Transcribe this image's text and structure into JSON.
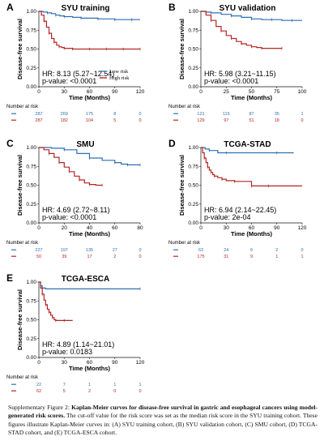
{
  "colors": {
    "low": "#2e6fb5",
    "high": "#b22626",
    "axis": "#111111",
    "panel_bg": "#ffffff"
  },
  "ylabel": "Disease-free survival",
  "xlabel": "Time (Months)",
  "risk_title": "Number at risk",
  "caption": {
    "prefix": "Supplementary Figure 2: ",
    "bold": "Kaplan-Meier curves for disease-free survival in gastric and esophageal cancers using model-generated risk scores.",
    "rest": " The cut-off value for the risk score was set as the median risk score in the SYU training cohort. These figures illustrate Kaplan-Meier curves in: (A) SYU training cohort, (B) SYU validation cohort, (C) SMU cohort, (D) TCGA-STAD cohort, and (E) TCGA-ESCA cohort."
  },
  "chart_data": [
    {
      "type": "line",
      "letter": "A",
      "title": "SYU training",
      "hr": "HR: 8.13 (5.27~12.54)",
      "p": "p-value: <0.0001",
      "legend": [
        "Low risk",
        "High risk"
      ],
      "xlim": [
        0,
        120
      ],
      "ylim": [
        0,
        1
      ],
      "xticks": [
        0,
        30,
        60,
        90,
        120
      ],
      "yticks": [
        0.0,
        0.25,
        0.5,
        0.75,
        1.0
      ],
      "series": [
        {
          "name": "Low risk",
          "color": "#2e6fb5",
          "x": [
            0,
            5,
            10,
            15,
            20,
            25,
            30,
            40,
            50,
            60,
            70,
            80,
            90,
            100,
            110,
            120
          ],
          "y": [
            1,
            0.99,
            0.98,
            0.97,
            0.95,
            0.94,
            0.93,
            0.92,
            0.91,
            0.91,
            0.9,
            0.9,
            0.89,
            0.89,
            0.89,
            0.89
          ]
        },
        {
          "name": "High risk",
          "color": "#b22626",
          "x": [
            0,
            3,
            6,
            9,
            12,
            15,
            18,
            21,
            24,
            27,
            30,
            35,
            40,
            50,
            60,
            70,
            80,
            90,
            100,
            110,
            120
          ],
          "y": [
            1,
            0.95,
            0.87,
            0.79,
            0.71,
            0.64,
            0.59,
            0.55,
            0.53,
            0.52,
            0.51,
            0.51,
            0.5,
            0.5,
            0.5,
            0.5,
            0.5,
            0.5,
            0.5,
            0.5,
            0.5
          ]
        }
      ],
      "risk_table": {
        "times": [
          0,
          30,
          60,
          90,
          120
        ],
        "rows": [
          [
            287,
            269,
            175,
            8,
            0
          ],
          [
            287,
            182,
            104,
            5,
            0
          ]
        ]
      }
    },
    {
      "type": "line",
      "letter": "B",
      "title": "SYU validation",
      "hr": "HR: 5.98 (3.21~11.15)",
      "p": "p-value: <0.0001",
      "legend": [],
      "xlim": [
        0,
        100
      ],
      "ylim": [
        0,
        1
      ],
      "xticks": [
        0,
        25,
        50,
        75,
        100
      ],
      "yticks": [
        0.0,
        0.25,
        0.5,
        0.75,
        1.0
      ],
      "series": [
        {
          "name": "Low risk",
          "color": "#2e6fb5",
          "x": [
            0,
            5,
            10,
            20,
            30,
            40,
            50,
            60,
            70,
            80,
            90,
            100
          ],
          "y": [
            1,
            0.99,
            0.98,
            0.96,
            0.94,
            0.92,
            0.9,
            0.89,
            0.89,
            0.88,
            0.88,
            0.88
          ]
        },
        {
          "name": "High risk",
          "color": "#b22626",
          "x": [
            0,
            5,
            10,
            15,
            20,
            25,
            30,
            35,
            40,
            45,
            50,
            55,
            60,
            70,
            80
          ],
          "y": [
            1,
            0.95,
            0.88,
            0.8,
            0.74,
            0.68,
            0.64,
            0.6,
            0.57,
            0.55,
            0.53,
            0.52,
            0.51,
            0.51,
            0.51
          ]
        }
      ],
      "risk_table": {
        "times": [
          0,
          25,
          50,
          75,
          100
        ],
        "rows": [
          [
            121,
            115,
            87,
            35,
            1
          ],
          [
            129,
            97,
            51,
            18,
            0
          ]
        ]
      }
    },
    {
      "type": "line",
      "letter": "C",
      "title": "SMU",
      "hr": "HR: 4.69 (2.72~8.11)",
      "p": "p-value: <0.0001",
      "legend": [],
      "xlim": [
        0,
        80
      ],
      "ylim": [
        0,
        1
      ],
      "xticks": [
        0,
        20,
        40,
        60,
        80
      ],
      "yticks": [
        0.0,
        0.25,
        0.5,
        0.75,
        1.0
      ],
      "series": [
        {
          "name": "Low risk",
          "color": "#2e6fb5",
          "x": [
            0,
            10,
            20,
            30,
            40,
            50,
            60,
            65,
            70,
            75,
            80
          ],
          "y": [
            1,
            0.99,
            0.97,
            0.92,
            0.86,
            0.83,
            0.8,
            0.78,
            0.77,
            0.77,
            0.77
          ]
        },
        {
          "name": "High risk",
          "color": "#b22626",
          "x": [
            0,
            4,
            8,
            12,
            16,
            20,
            24,
            28,
            32,
            36,
            40,
            45,
            50
          ],
          "y": [
            1,
            0.97,
            0.92,
            0.87,
            0.8,
            0.74,
            0.68,
            0.62,
            0.57,
            0.53,
            0.51,
            0.5,
            0.5
          ]
        }
      ],
      "risk_table": {
        "times": [
          0,
          20,
          40,
          60,
          80
        ],
        "rows": [
          [
            227,
            197,
            135,
            27,
            0
          ],
          [
            50,
            39,
            17,
            2,
            0
          ]
        ]
      }
    },
    {
      "type": "line",
      "letter": "D",
      "title": "TCGA-STAD",
      "hr": "HR: 6.94 (2.14~22.45)",
      "p": "p-value: 2e-04",
      "legend": [],
      "xlim": [
        0,
        120
      ],
      "ylim": [
        0,
        1
      ],
      "xticks": [
        0,
        30,
        60,
        90,
        120
      ],
      "yticks": [
        0.0,
        0.25,
        0.5,
        0.75,
        1.0
      ],
      "series": [
        {
          "name": "Low risk",
          "color": "#2e6fb5",
          "x": [
            0,
            5,
            10,
            20,
            30,
            60,
            90,
            110
          ],
          "y": [
            1,
            0.98,
            0.96,
            0.93,
            0.93,
            0.93,
            0.93,
            0.93
          ]
        },
        {
          "name": "High risk",
          "color": "#b22626",
          "x": [
            0,
            2,
            4,
            6,
            8,
            10,
            12,
            14,
            16,
            20,
            25,
            30,
            40,
            50,
            60,
            70,
            80,
            120
          ],
          "y": [
            1,
            0.93,
            0.86,
            0.8,
            0.74,
            0.7,
            0.67,
            0.64,
            0.62,
            0.6,
            0.58,
            0.56,
            0.55,
            0.55,
            0.49,
            0.49,
            0.49,
            0.49
          ]
        }
      ],
      "risk_table": {
        "times": [
          0,
          30,
          60,
          90,
          120
        ],
        "rows": [
          [
            63,
            24,
            6,
            2,
            0
          ],
          [
            175,
            31,
            9,
            1,
            1
          ]
        ]
      }
    },
    {
      "type": "line",
      "letter": "E",
      "title": "TCGA-ESCA",
      "hr": "HR: 4.89 (1.14~21.01)",
      "p": "p-value: 0.0183",
      "legend": [],
      "xlim": [
        0,
        120
      ],
      "ylim": [
        0,
        1
      ],
      "xticks": [
        0,
        30,
        60,
        90,
        120
      ],
      "yticks": [
        0.0,
        0.25,
        0.5,
        0.75,
        1.0
      ],
      "series": [
        {
          "name": "Low risk",
          "color": "#2e6fb5",
          "x": [
            0,
            2,
            4,
            8,
            120
          ],
          "y": [
            1,
            0.95,
            0.92,
            0.91,
            0.91
          ]
        },
        {
          "name": "High risk",
          "color": "#b22626",
          "x": [
            0,
            2,
            4,
            6,
            8,
            10,
            12,
            14,
            16,
            18,
            20,
            24,
            30,
            40
          ],
          "y": [
            1,
            0.92,
            0.84,
            0.76,
            0.7,
            0.64,
            0.6,
            0.56,
            0.53,
            0.5,
            0.49,
            0.49,
            0.49,
            0.49
          ]
        }
      ],
      "risk_table": {
        "times": [
          0,
          30,
          60,
          90,
          120
        ],
        "rows": [
          [
            22,
            7,
            1,
            1,
            1
          ],
          [
            62,
            5,
            2,
            0,
            0
          ]
        ]
      }
    }
  ]
}
